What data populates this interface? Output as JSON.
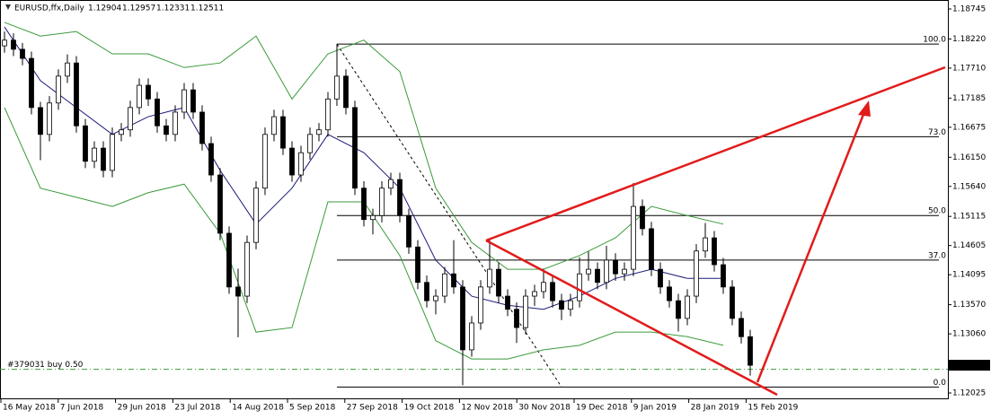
{
  "chart_data": {
    "type": "candlestick",
    "symbol": "EURUSD,ffx,Daily",
    "ohlc": [
      1.12904,
      1.12957,
      1.12331,
      1.12511
    ],
    "ylim": [
      1.11931,
      1.18902
    ],
    "yticks": [
      {
        "value": 1.18745,
        "label": "1.18745"
      },
      {
        "value": 1.1822,
        "label": "1.18220"
      },
      {
        "value": 1.1771,
        "label": "1.17710"
      },
      {
        "value": 1.17185,
        "label": "1.17185"
      },
      {
        "value": 1.16675,
        "label": "1.16675"
      },
      {
        "value": 1.1615,
        "label": "1.16150"
      },
      {
        "value": 1.1564,
        "label": "1.15640"
      },
      {
        "value": 1.15115,
        "label": "1.15115"
      },
      {
        "value": 1.14605,
        "label": "1.14605"
      },
      {
        "value": 1.14095,
        "label": "1.14095"
      },
      {
        "value": 1.1357,
        "label": "1.13570"
      },
      {
        "value": 1.1306,
        "label": "1.13060"
      },
      {
        "value": 1.12025,
        "label": "1.12025"
      }
    ],
    "xticks": [
      "16 May 2018",
      "7 Jun 2018",
      "29 Jun 2018",
      "23 Jul 2018",
      "14 Aug 2018",
      "5 Sep 2018",
      "27 Sep 2018",
      "19 Oct 2018",
      "12 Nov 2018",
      "30 Nov 2018",
      "19 Dec 2018",
      "9 Jan 2019",
      "28 Jan 2019",
      "15 Feb 2019"
    ],
    "candles": [
      [
        1.181,
        1.1835,
        1.1798,
        1.182
      ],
      [
        1.182,
        1.1832,
        1.1792,
        1.1804
      ],
      [
        1.1804,
        1.1815,
        1.1776,
        1.1788
      ],
      [
        1.1788,
        1.18,
        1.169,
        1.1702
      ],
      [
        1.1702,
        1.1712,
        1.161,
        1.1655
      ],
      [
        1.1655,
        1.1722,
        1.1643,
        1.171
      ],
      [
        1.171,
        1.1769,
        1.1698,
        1.1757
      ],
      [
        1.1757,
        1.1795,
        1.1745,
        1.178
      ],
      [
        1.178,
        1.1792,
        1.1658,
        1.167
      ],
      [
        1.167,
        1.1682,
        1.1596,
        1.1608
      ],
      [
        1.1608,
        1.1643,
        1.1596,
        1.1631
      ],
      [
        1.1631,
        1.1643,
        1.158,
        1.1592
      ],
      [
        1.1592,
        1.1667,
        1.158,
        1.1655
      ],
      [
        1.1655,
        1.1675,
        1.1643,
        1.1663
      ],
      [
        1.1663,
        1.1714,
        1.1651,
        1.1702
      ],
      [
        1.1702,
        1.1753,
        1.169,
        1.1741
      ],
      [
        1.1741,
        1.1753,
        1.1705,
        1.1717
      ],
      [
        1.1717,
        1.1729,
        1.1658,
        1.167
      ],
      [
        1.167,
        1.1682,
        1.1643,
        1.1655
      ],
      [
        1.1655,
        1.1706,
        1.1643,
        1.1694
      ],
      [
        1.1694,
        1.1745,
        1.1682,
        1.1733
      ],
      [
        1.1733,
        1.1745,
        1.1682,
        1.1694
      ],
      [
        1.1694,
        1.1706,
        1.1627,
        1.1639
      ],
      [
        1.1639,
        1.1651,
        1.1572,
        1.1584
      ],
      [
        1.1584,
        1.1596,
        1.147,
        1.1482
      ],
      [
        1.1482,
        1.1494,
        1.1376,
        1.1388
      ],
      [
        1.1388,
        1.142,
        1.13,
        1.1372
      ],
      [
        1.1372,
        1.1478,
        1.136,
        1.1466
      ],
      [
        1.1466,
        1.1573,
        1.1454,
        1.1561
      ],
      [
        1.1561,
        1.1667,
        1.1549,
        1.1655
      ],
      [
        1.1655,
        1.1698,
        1.1643,
        1.1686
      ],
      [
        1.1686,
        1.1698,
        1.1619,
        1.1631
      ],
      [
        1.1631,
        1.1643,
        1.1572,
        1.1584
      ],
      [
        1.1584,
        1.1635,
        1.1572,
        1.1623
      ],
      [
        1.1623,
        1.1667,
        1.1611,
        1.1655
      ],
      [
        1.1655,
        1.1675,
        1.1643,
        1.1663
      ],
      [
        1.1663,
        1.1729,
        1.1651,
        1.1717
      ],
      [
        1.1717,
        1.1813,
        1.1705,
        1.1757
      ],
      [
        1.1757,
        1.1769,
        1.169,
        1.1702
      ],
      [
        1.1702,
        1.1714,
        1.1549,
        1.1561
      ],
      [
        1.1561,
        1.1573,
        1.1494,
        1.1506
      ],
      [
        1.1506,
        1.1525,
        1.148,
        1.1513
      ],
      [
        1.1513,
        1.1573,
        1.1501,
        1.1561
      ],
      [
        1.1561,
        1.1588,
        1.1549,
        1.1576
      ],
      [
        1.1576,
        1.1588,
        1.1501,
        1.1513
      ],
      [
        1.1513,
        1.1525,
        1.1446,
        1.1458
      ],
      [
        1.1458,
        1.147,
        1.1384,
        1.1396
      ],
      [
        1.1396,
        1.1408,
        1.1352,
        1.1364
      ],
      [
        1.1364,
        1.1384,
        1.134,
        1.1372
      ],
      [
        1.1372,
        1.1423,
        1.136,
        1.1411
      ],
      [
        1.1411,
        1.147,
        1.1376,
        1.1388
      ],
      [
        1.1388,
        1.14,
        1.1216,
        1.1278
      ],
      [
        1.1278,
        1.1337,
        1.1266,
        1.1325
      ],
      [
        1.1325,
        1.14,
        1.1313,
        1.1388
      ],
      [
        1.1388,
        1.1472,
        1.1376,
        1.1419
      ],
      [
        1.1419,
        1.1431,
        1.136,
        1.1372
      ],
      [
        1.1372,
        1.1384,
        1.1337,
        1.1349
      ],
      [
        1.1349,
        1.1361,
        1.129,
        1.1317
      ],
      [
        1.1317,
        1.1384,
        1.1305,
        1.1372
      ],
      [
        1.1372,
        1.1392,
        1.1355,
        1.138
      ],
      [
        1.138,
        1.142,
        1.1368,
        1.1396
      ],
      [
        1.1396,
        1.1408,
        1.1352,
        1.1364
      ],
      [
        1.1364,
        1.1376,
        1.133,
        1.1349
      ],
      [
        1.1349,
        1.1376,
        1.1337,
        1.1364
      ],
      [
        1.1364,
        1.144,
        1.1352,
        1.1411
      ],
      [
        1.1411,
        1.145,
        1.1399,
        1.1419
      ],
      [
        1.1419,
        1.1431,
        1.1384,
        1.1396
      ],
      [
        1.1396,
        1.146,
        1.1384,
        1.1435
      ],
      [
        1.1435,
        1.1447,
        1.1399,
        1.1411
      ],
      [
        1.1411,
        1.1431,
        1.1399,
        1.1419
      ],
      [
        1.1419,
        1.157,
        1.1407,
        1.1529
      ],
      [
        1.1529,
        1.1541,
        1.1478,
        1.149
      ],
      [
        1.149,
        1.1502,
        1.1407,
        1.1419
      ],
      [
        1.1419,
        1.1431,
        1.1376,
        1.1388
      ],
      [
        1.1388,
        1.14,
        1.1352,
        1.1364
      ],
      [
        1.1364,
        1.1376,
        1.131,
        1.1333
      ],
      [
        1.1333,
        1.1384,
        1.1321,
        1.1372
      ],
      [
        1.1372,
        1.1463,
        1.136,
        1.1451
      ],
      [
        1.1451,
        1.15,
        1.1439,
        1.1474
      ],
      [
        1.1474,
        1.1486,
        1.1415,
        1.1427
      ],
      [
        1.1427,
        1.1439,
        1.1376,
        1.1388
      ],
      [
        1.1388,
        1.14,
        1.1321,
        1.1333
      ],
      [
        1.1333,
        1.1345,
        1.1289,
        1.1301
      ],
      [
        1.1301,
        1.1313,
        1.1233,
        1.1251
      ]
    ],
    "bands": {
      "upper": [
        1.1851,
        1.1827,
        1.1835,
        1.1796,
        1.1796,
        1.1772,
        1.178,
        1.1827,
        1.1717,
        1.1796,
        1.182,
        1.1765,
        1.1561,
        1.1466,
        1.1419,
        1.1419,
        1.1443,
        1.1474,
        1.1529,
        1.1513,
        1.1498
      ],
      "lower": [
        1.1702,
        1.1561,
        1.1545,
        1.1529,
        1.1553,
        1.1568,
        1.1482,
        1.1309,
        1.1317,
        1.1537,
        1.1537,
        1.1443,
        1.1294,
        1.1262,
        1.1262,
        1.1278,
        1.1286,
        1.1309,
        1.1309,
        1.1301,
        1.1286
      ],
      "color": "#3a9a3a"
    },
    "ma": {
      "values": [
        1.1843,
        1.1749,
        1.1702,
        1.1655,
        1.1686,
        1.1702,
        1.1592,
        1.1498,
        1.1561,
        1.1655,
        1.1623,
        1.1561,
        1.1435,
        1.1372,
        1.1356,
        1.1349,
        1.1372,
        1.1403,
        1.1419,
        1.1403,
        1.1403
      ],
      "color": "#1a1a7a"
    },
    "fibo": {
      "price_0": 1.1213,
      "price_100": 1.1813,
      "levels": [
        {
          "value": 100,
          "label": "100.0"
        },
        {
          "value": 73,
          "label": "73.0"
        },
        {
          "value": 50,
          "label": "50.0"
        },
        {
          "value": 37,
          "label": "37.0"
        },
        {
          "value": 0,
          "label": "0.0"
        }
      ]
    },
    "order": {
      "label": "#379031 buy 0.50",
      "price": 1.1244
    }
  }
}
